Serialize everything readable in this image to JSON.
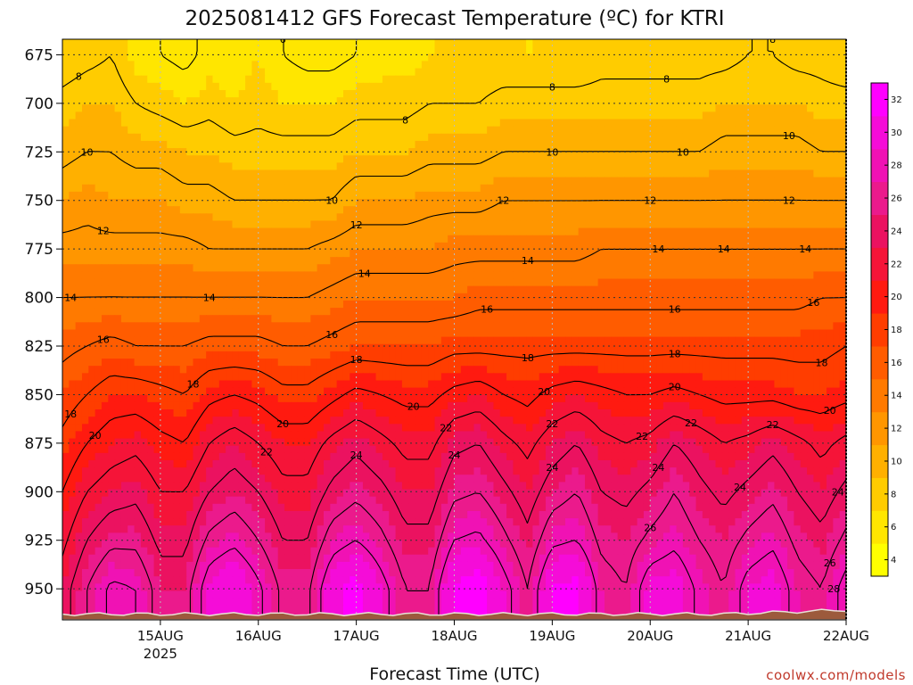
{
  "chart_data": {
    "type": "heatmap",
    "title": "2025081412 GFS Forecast Temperature (ºC) for KTRI",
    "xlabel": "Forecast Time (UTC)",
    "ylabel": "",
    "credit": "coolwx.com/models",
    "y_axis": {
      "unit": "hPa",
      "inverted": true,
      "range": [
        667,
        966
      ],
      "ticks": [
        675,
        700,
        725,
        750,
        775,
        800,
        825,
        850,
        875,
        900,
        925,
        950
      ]
    },
    "x_axis": {
      "range_hours": [
        -12,
        180
      ],
      "ticks": [
        {
          "label": "15AUG",
          "sublabel": "2025",
          "hour": 12
        },
        {
          "label": "16AUG",
          "sublabel": "",
          "hour": 36
        },
        {
          "label": "17AUG",
          "sublabel": "",
          "hour": 60
        },
        {
          "label": "18AUG",
          "sublabel": "",
          "hour": 84
        },
        {
          "label": "19AUG",
          "sublabel": "",
          "hour": 108
        },
        {
          "label": "20AUG",
          "sublabel": "",
          "hour": 132
        },
        {
          "label": "21AUG",
          "sublabel": "",
          "hour": 156
        },
        {
          "label": "22AUG",
          "sublabel": "",
          "hour": 180
        }
      ]
    },
    "grid": true,
    "colorbar": {
      "ticks": [
        4,
        6,
        8,
        10,
        12,
        14,
        16,
        18,
        20,
        22,
        24,
        26,
        28,
        30,
        32
      ],
      "colors": [
        "#ffff00",
        "#ffe600",
        "#ffcc00",
        "#ffb000",
        "#ff9600",
        "#ff7a00",
        "#ff5c00",
        "#ff3d00",
        "#ff1a10",
        "#f51438",
        "#eb1260",
        "#eb1a8c",
        "#f012b4",
        "#f50cd8",
        "#ff00ff"
      ]
    },
    "contour_interval_c": 2,
    "contour_levels": [
      6,
      8,
      10,
      12,
      14,
      16,
      18,
      20,
      22,
      24,
      26,
      28
    ],
    "contour_labels": [
      {
        "text": "6"
      },
      {
        "text": "8"
      },
      {
        "text": "8"
      },
      {
        "text": "8"
      },
      {
        "text": "8"
      },
      {
        "text": "8"
      },
      {
        "text": "10"
      },
      {
        "text": "10"
      },
      {
        "text": "10"
      },
      {
        "text": "10"
      },
      {
        "text": "10"
      },
      {
        "text": "12"
      },
      {
        "text": "12"
      },
      {
        "text": "12"
      },
      {
        "text": "12"
      },
      {
        "text": "12"
      },
      {
        "text": "14"
      },
      {
        "text": "14"
      },
      {
        "text": "14"
      },
      {
        "text": "14"
      },
      {
        "text": "14"
      },
      {
        "text": "14"
      },
      {
        "text": "14"
      },
      {
        "text": "16"
      },
      {
        "text": "16"
      },
      {
        "text": "16"
      },
      {
        "text": "16"
      },
      {
        "text": "16"
      },
      {
        "text": "18"
      },
      {
        "text": "18"
      },
      {
        "text": "18"
      },
      {
        "text": "18"
      },
      {
        "text": "18"
      },
      {
        "text": "18"
      },
      {
        "text": "20"
      },
      {
        "text": "20"
      },
      {
        "text": "20"
      },
      {
        "text": "20"
      },
      {
        "text": "20"
      },
      {
        "text": "20"
      },
      {
        "text": "22"
      },
      {
        "text": "22"
      },
      {
        "text": "22"
      },
      {
        "text": "22"
      },
      {
        "text": "22"
      },
      {
        "text": "22"
      },
      {
        "text": "24"
      },
      {
        "text": "24"
      },
      {
        "text": "24"
      },
      {
        "text": "24"
      },
      {
        "text": "24"
      },
      {
        "text": "24"
      },
      {
        "text": "26"
      },
      {
        "text": "26"
      },
      {
        "text": "28"
      }
    ],
    "surface_pressure_hpa": 963,
    "series": [
      {
        "hours": [
          -12,
          -6,
          0,
          6,
          12,
          18,
          24,
          30,
          36,
          42,
          48,
          54,
          60,
          66,
          72,
          78,
          84,
          90,
          96,
          102,
          108,
          114,
          120,
          126,
          132,
          138,
          144,
          150,
          156,
          162,
          168,
          174,
          180
        ],
        "levels_hpa": [
          675,
          700,
          725,
          750,
          775,
          800,
          825,
          850,
          875,
          900,
          925,
          950
        ],
        "temperature_c": [
          [
            7.0,
            7.5,
            8.0,
            6.5,
            6.0,
            5.5,
            6.5,
            6.5,
            7.0,
            6.0,
            5.5,
            5.5,
            6.0,
            6.5,
            6.5,
            7.0,
            7.0,
            7.0,
            7.0,
            7.0,
            7.0,
            7.0,
            7.5,
            7.5,
            7.5,
            7.5,
            7.5,
            7.5,
            8.0,
            8.0,
            7.5,
            7.5,
            7.0
          ],
          [
            8.5,
            9.0,
            9.0,
            8.0,
            7.5,
            7.0,
            7.5,
            7.0,
            7.5,
            7.0,
            7.0,
            7.0,
            7.5,
            7.5,
            7.5,
            8.0,
            8.0,
            8.0,
            8.5,
            8.5,
            8.5,
            8.5,
            8.5,
            8.5,
            8.5,
            8.5,
            8.5,
            9.0,
            9.0,
            9.0,
            9.0,
            8.5,
            8.5
          ],
          [
            9.5,
            10.0,
            10.0,
            9.5,
            9.5,
            9.0,
            9.0,
            8.5,
            8.5,
            8.5,
            8.5,
            8.5,
            9.0,
            9.0,
            9.0,
            9.5,
            9.5,
            9.5,
            10.0,
            10.0,
            10.0,
            10.0,
            10.0,
            10.0,
            10.0,
            10.0,
            10.0,
            10.5,
            10.5,
            10.5,
            10.5,
            10.0,
            10.0
          ],
          [
            11.0,
            11.5,
            11.0,
            11.0,
            11.0,
            10.5,
            10.5,
            10.0,
            10.0,
            10.0,
            10.0,
            10.0,
            11.0,
            11.0,
            11.0,
            11.5,
            11.5,
            11.5,
            12.0,
            12.0,
            12.0,
            12.0,
            12.0,
            12.0,
            12.0,
            12.0,
            12.0,
            12.0,
            12.0,
            12.0,
            12.0,
            12.0,
            12.0
          ],
          [
            12.5,
            12.5,
            12.5,
            12.5,
            12.5,
            12.5,
            12.0,
            12.0,
            12.0,
            12.0,
            12.0,
            12.5,
            13.0,
            13.0,
            13.0,
            13.0,
            13.5,
            13.5,
            13.5,
            13.5,
            13.5,
            13.5,
            14.0,
            14.0,
            14.0,
            14.0,
            14.0,
            14.0,
            14.0,
            14.0,
            14.0,
            14.0,
            14.0
          ],
          [
            14.0,
            14.0,
            14.0,
            14.0,
            14.0,
            14.0,
            14.0,
            14.0,
            14.0,
            14.0,
            14.0,
            14.5,
            15.0,
            15.0,
            15.0,
            15.0,
            15.0,
            15.5,
            15.5,
            15.5,
            15.5,
            15.5,
            15.5,
            15.5,
            15.5,
            15.5,
            15.5,
            15.5,
            15.5,
            15.5,
            15.5,
            16.0,
            16.0
          ],
          [
            15.5,
            16.0,
            16.5,
            16.0,
            16.0,
            16.0,
            16.5,
            16.5,
            16.5,
            16.0,
            16.0,
            16.5,
            17.0,
            17.0,
            17.0,
            17.0,
            17.5,
            17.5,
            17.5,
            17.5,
            17.5,
            17.5,
            17.5,
            17.5,
            17.5,
            17.5,
            17.5,
            17.5,
            17.5,
            17.5,
            17.5,
            17.5,
            18.0
          ],
          [
            17.0,
            18.0,
            19.0,
            19.0,
            18.5,
            18.0,
            19.5,
            20.0,
            19.5,
            18.5,
            18.5,
            19.5,
            20.5,
            20.0,
            19.5,
            19.5,
            20.5,
            21.0,
            20.0,
            19.5,
            20.5,
            21.0,
            20.5,
            20.0,
            20.0,
            20.5,
            20.0,
            19.5,
            19.5,
            19.5,
            19.0,
            19.0,
            19.5
          ],
          [
            18.5,
            20.0,
            21.0,
            21.5,
            20.5,
            20.0,
            22.0,
            23.0,
            22.0,
            21.0,
            21.0,
            22.5,
            23.5,
            22.5,
            21.5,
            21.5,
            23.5,
            24.0,
            22.5,
            21.5,
            23.0,
            24.0,
            22.5,
            22.0,
            22.5,
            24.0,
            23.0,
            22.0,
            22.5,
            23.5,
            22.5,
            21.5,
            22.5
          ],
          [
            20.0,
            22.0,
            23.0,
            23.5,
            22.0,
            22.0,
            24.0,
            25.0,
            24.0,
            22.5,
            22.5,
            24.5,
            25.5,
            24.5,
            23.0,
            23.0,
            25.5,
            26.0,
            24.5,
            23.0,
            25.0,
            26.0,
            24.0,
            23.5,
            24.5,
            26.0,
            24.5,
            23.5,
            24.5,
            25.5,
            24.0,
            23.0,
            24.5
          ],
          [
            21.5,
            24.0,
            25.5,
            25.5,
            23.5,
            23.5,
            26.5,
            27.5,
            26.0,
            24.0,
            24.0,
            27.0,
            28.0,
            26.5,
            24.5,
            24.5,
            28.0,
            28.5,
            26.5,
            24.5,
            27.5,
            28.0,
            25.5,
            25.0,
            26.5,
            27.5,
            26.0,
            25.0,
            26.5,
            27.5,
            25.5,
            24.5,
            26.5
          ],
          [
            23.0,
            26.0,
            28.5,
            28.0,
            25.0,
            25.0,
            29.5,
            31.0,
            28.5,
            25.5,
            25.5,
            30.0,
            32.0,
            29.0,
            26.0,
            26.0,
            31.5,
            32.5,
            29.0,
            26.0,
            31.0,
            32.0,
            27.0,
            26.0,
            29.5,
            30.0,
            27.5,
            26.0,
            29.0,
            30.0,
            27.0,
            26.0,
            29.0
          ]
        ]
      }
    ]
  }
}
